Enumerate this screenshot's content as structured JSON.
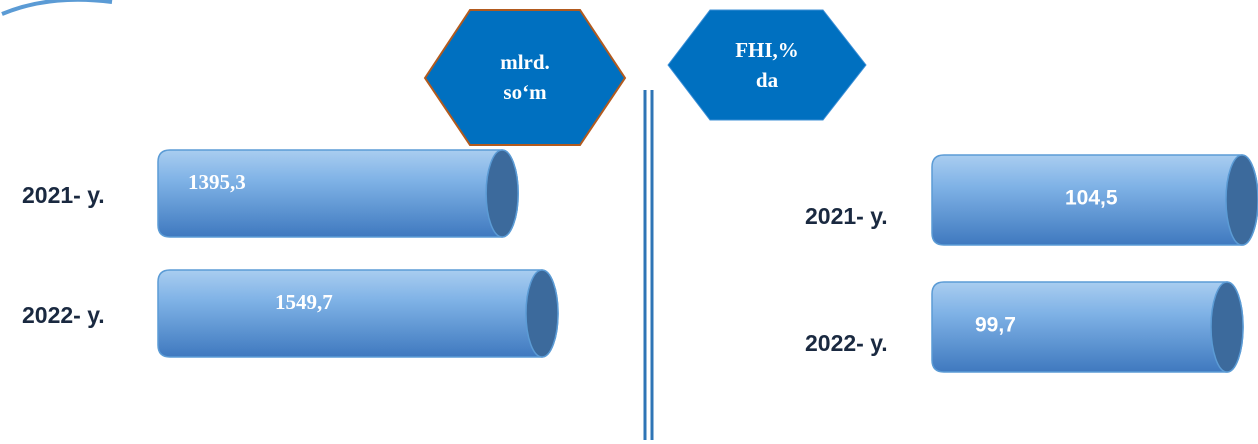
{
  "chart_data": [
    {
      "type": "bar",
      "title": "mlrd. so‘m",
      "categories": [
        "2021- y.",
        "2022- y."
      ],
      "values": [
        1395.3,
        1549.7
      ],
      "value_labels": [
        "1395,3",
        "1549,7"
      ],
      "color": "#5b9bd5"
    },
    {
      "type": "bar",
      "title": "FHI,% da",
      "categories": [
        "2021- y.",
        "2022- y."
      ],
      "values": [
        104.5,
        99.7
      ],
      "value_labels": [
        "104,5",
        "99,7"
      ],
      "color": "#5b9bd5"
    }
  ]
}
